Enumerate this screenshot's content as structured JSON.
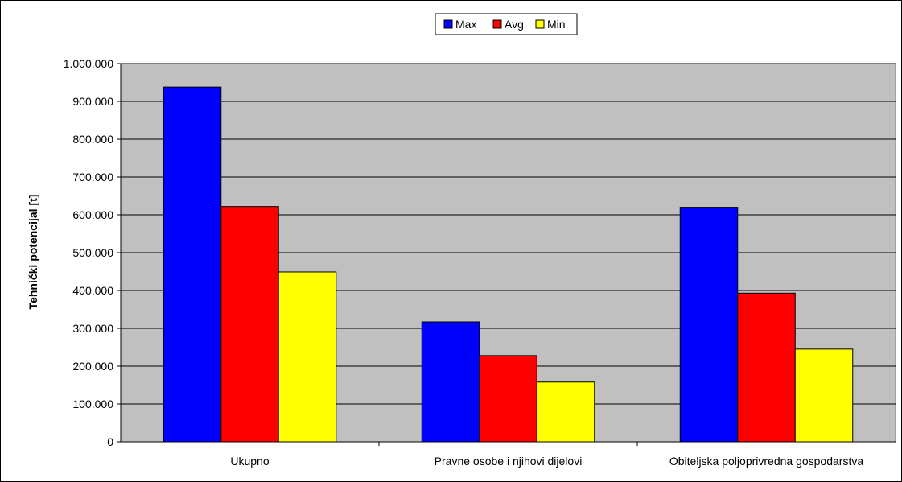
{
  "chart_data": {
    "type": "bar",
    "title": "",
    "xlabel": "",
    "ylabel": "Tehnički potencijal [t]",
    "categories": [
      "Ukupno",
      "Pravne osobe i njihovi dijelovi",
      "Obiteljska poljoprivredna gospodarstva"
    ],
    "series": [
      {
        "name": "Max",
        "color": "#0000ff",
        "values": [
          938000,
          317000,
          620000
        ]
      },
      {
        "name": "Avg",
        "color": "#ff0000",
        "values": [
          622000,
          228000,
          393000
        ]
      },
      {
        "name": "Min",
        "color": "#ffff00",
        "values": [
          449000,
          158000,
          245000
        ]
      }
    ],
    "ylim": [
      0,
      1000000
    ],
    "yticks": [
      {
        "value": 0,
        "label": "0"
      },
      {
        "value": 100000,
        "label": "100.000"
      },
      {
        "value": 200000,
        "label": "200.000"
      },
      {
        "value": 300000,
        "label": "300.000"
      },
      {
        "value": 400000,
        "label": "400.000"
      },
      {
        "value": 500000,
        "label": "500.000"
      },
      {
        "value": 600000,
        "label": "600.000"
      },
      {
        "value": 700000,
        "label": "700.000"
      },
      {
        "value": 800000,
        "label": "800.000"
      },
      {
        "value": 900000,
        "label": "900.000"
      },
      {
        "value": 1000000,
        "label": "1.000.000"
      }
    ],
    "grid": true,
    "legend_position": "top-center",
    "plot_background": "#c0c0c0"
  }
}
